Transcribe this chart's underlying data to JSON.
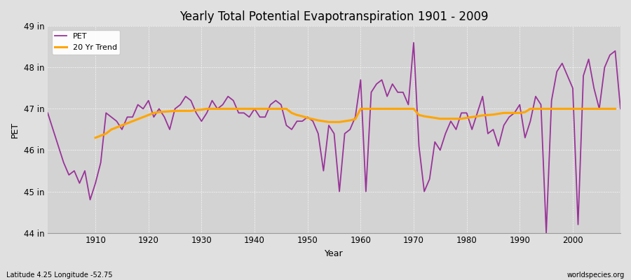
{
  "title": "Yearly Total Potential Evapotranspiration 1901 - 2009",
  "xlabel": "Year",
  "ylabel": "PET",
  "footnote_left": "Latitude 4.25 Longitude -52.75",
  "footnote_right": "worldspecies.org",
  "pet_color": "#993399",
  "trend_color": "#FFA500",
  "bg_color": "#E0E0E0",
  "plot_bg_color": "#D3D3D3",
  "ylim": [
    44,
    49
  ],
  "ytick_labels": [
    "44 in",
    "45 in",
    "46 in",
    "47 in",
    "48 in",
    "49 in"
  ],
  "ytick_values": [
    44,
    45,
    46,
    47,
    48,
    49
  ],
  "xlim_left": 1901,
  "xlim_right": 2009,
  "xticks": [
    1910,
    1920,
    1930,
    1940,
    1950,
    1960,
    1970,
    1980,
    1990,
    2000
  ],
  "years": [
    1901,
    1902,
    1903,
    1904,
    1905,
    1906,
    1907,
    1908,
    1909,
    1910,
    1911,
    1912,
    1913,
    1914,
    1915,
    1916,
    1917,
    1918,
    1919,
    1920,
    1921,
    1922,
    1923,
    1924,
    1925,
    1926,
    1927,
    1928,
    1929,
    1930,
    1931,
    1932,
    1933,
    1934,
    1935,
    1936,
    1937,
    1938,
    1939,
    1940,
    1941,
    1942,
    1943,
    1944,
    1945,
    1946,
    1947,
    1948,
    1949,
    1950,
    1951,
    1952,
    1953,
    1954,
    1955,
    1956,
    1957,
    1958,
    1959,
    1960,
    1961,
    1962,
    1963,
    1964,
    1965,
    1966,
    1967,
    1968,
    1969,
    1970,
    1971,
    1972,
    1973,
    1974,
    1975,
    1976,
    1977,
    1978,
    1979,
    1980,
    1981,
    1982,
    1983,
    1984,
    1985,
    1986,
    1987,
    1988,
    1989,
    1990,
    1991,
    1992,
    1993,
    1994,
    1995,
    1996,
    1997,
    1998,
    1999,
    2000,
    2001,
    2002,
    2003,
    2004,
    2005,
    2006,
    2007,
    2008,
    2009
  ],
  "pet_values": [
    46.9,
    46.5,
    46.1,
    45.7,
    45.4,
    45.5,
    45.2,
    45.5,
    44.8,
    45.2,
    45.7,
    46.9,
    46.8,
    46.7,
    46.5,
    46.8,
    46.8,
    47.1,
    47.0,
    47.2,
    46.8,
    47.0,
    46.8,
    46.5,
    47.0,
    47.1,
    47.3,
    47.2,
    46.9,
    46.7,
    46.9,
    47.2,
    47.0,
    47.1,
    47.3,
    47.2,
    46.9,
    46.9,
    46.8,
    47.0,
    46.8,
    46.8,
    47.1,
    47.2,
    47.1,
    46.6,
    46.5,
    46.7,
    46.7,
    46.8,
    46.7,
    46.4,
    45.5,
    46.6,
    46.4,
    45.0,
    46.4,
    46.5,
    46.8,
    47.7,
    45.0,
    47.4,
    47.6,
    47.7,
    47.3,
    47.6,
    47.4,
    47.4,
    47.1,
    48.6,
    46.1,
    45.0,
    45.3,
    46.2,
    46.0,
    46.4,
    46.7,
    46.5,
    46.9,
    46.9,
    46.5,
    46.9,
    47.3,
    46.4,
    46.5,
    46.1,
    46.6,
    46.8,
    46.9,
    47.1,
    46.3,
    46.7,
    47.3,
    47.1,
    44.0,
    47.2,
    47.9,
    48.1,
    47.8,
    47.5,
    44.2,
    47.8,
    48.2,
    47.5,
    47.0,
    48.0,
    48.3,
    48.4,
    47.0
  ],
  "trend_values": [
    null,
    null,
    null,
    null,
    null,
    null,
    null,
    null,
    null,
    46.3,
    46.35,
    46.4,
    46.5,
    46.55,
    46.6,
    46.65,
    46.7,
    46.75,
    46.8,
    46.85,
    46.9,
    46.92,
    46.93,
    46.94,
    46.95,
    46.95,
    46.95,
    46.95,
    46.97,
    46.98,
    47.0,
    47.0,
    47.0,
    47.0,
    47.0,
    47.0,
    47.0,
    47.0,
    47.0,
    47.0,
    47.0,
    47.0,
    47.0,
    47.0,
    47.0,
    47.0,
    46.9,
    46.85,
    46.82,
    46.78,
    46.75,
    46.72,
    46.7,
    46.68,
    46.68,
    46.68,
    46.7,
    46.72,
    46.75,
    47.0,
    47.0,
    47.0,
    47.0,
    47.0,
    47.0,
    47.0,
    47.0,
    47.0,
    47.0,
    47.0,
    46.85,
    46.82,
    46.8,
    46.78,
    46.76,
    46.76,
    46.76,
    46.76,
    46.76,
    46.78,
    46.8,
    46.82,
    46.84,
    46.85,
    46.86,
    46.88,
    46.9,
    46.9,
    46.9,
    46.9,
    46.92,
    47.0,
    47.0,
    47.0,
    47.0,
    47.0,
    47.0,
    47.0,
    47.0,
    47.0,
    47.0,
    47.0,
    47.0,
    47.0,
    47.0,
    47.0,
    47.0,
    47.0
  ]
}
